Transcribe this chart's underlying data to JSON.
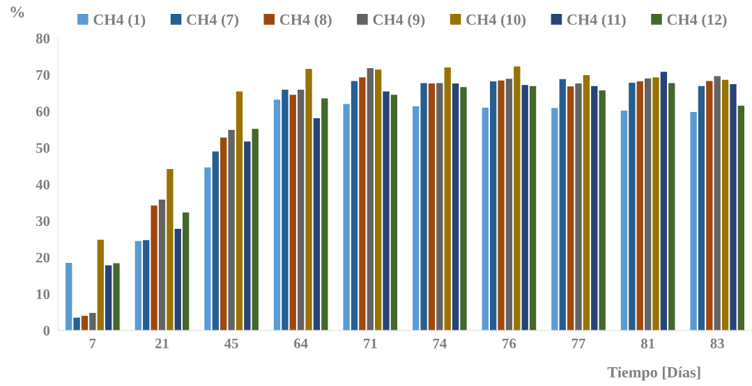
{
  "chart_data": {
    "type": "bar",
    "ylabel": "%",
    "xlabel": "Tiempo [Días]",
    "categories": [
      "7",
      "21",
      "45",
      "64",
      "71",
      "74",
      "76",
      "77",
      "81",
      "83"
    ],
    "series": [
      {
        "name": "CH4 (1)",
        "color": "#5b9bd5",
        "values": [
          18.5,
          24.5,
          44.6,
          63.2,
          62.0,
          61.4,
          61.0,
          60.9,
          60.2,
          59.8
        ]
      },
      {
        "name": "CH4 (7)",
        "color": "#255e91",
        "values": [
          3.5,
          24.7,
          49.0,
          65.9,
          68.3,
          67.7,
          68.2,
          68.8,
          67.8,
          66.9
        ]
      },
      {
        "name": "CH4 (8)",
        "color": "#9e480e",
        "values": [
          4.0,
          34.2,
          52.8,
          64.5,
          69.3,
          67.6,
          68.4,
          66.8,
          68.2,
          68.3
        ]
      },
      {
        "name": "CH4 (9)",
        "color": "#636363",
        "values": [
          4.8,
          35.8,
          54.9,
          65.9,
          71.8,
          67.7,
          68.9,
          67.6,
          69.0,
          69.6
        ]
      },
      {
        "name": "CH4 (10)",
        "color": "#997300",
        "values": [
          24.8,
          44.2,
          65.4,
          71.6,
          71.4,
          72.0,
          72.3,
          69.9,
          69.3,
          68.6
        ]
      },
      {
        "name": "CH4 (11)",
        "color": "#264478",
        "values": [
          17.8,
          27.8,
          51.7,
          58.1,
          65.4,
          67.6,
          67.2,
          66.9,
          70.8,
          67.4
        ]
      },
      {
        "name": "CH4 (12)",
        "color": "#43682b",
        "values": [
          18.4,
          32.3,
          55.2,
          63.5,
          64.5,
          66.6,
          66.9,
          65.7,
          67.7,
          61.5
        ]
      }
    ],
    "ylim": [
      0,
      80
    ],
    "yticks": [
      0,
      10,
      20,
      30,
      40,
      50,
      60,
      70,
      80
    ],
    "grid": false,
    "legend": "top"
  }
}
